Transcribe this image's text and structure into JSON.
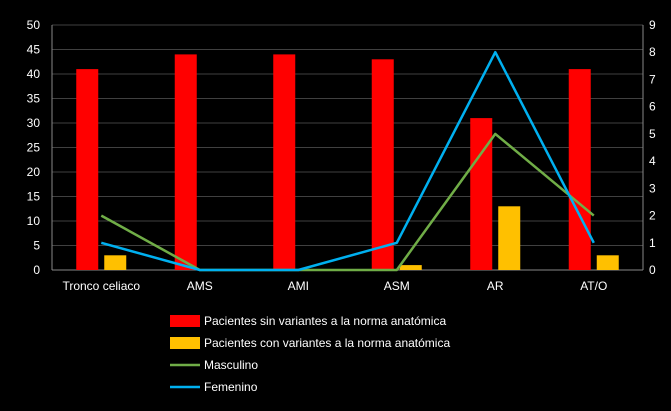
{
  "chart_data": {
    "type": "bar",
    "categories": [
      "Tronco celiaco",
      "AMS",
      "AMI",
      "ASM",
      "AR",
      "AT/O"
    ],
    "series": [
      {
        "name": "Pacientes sin variantes a la norma anatómica",
        "kind": "bar",
        "axis": "left",
        "color": "#ff0000",
        "values": [
          41,
          44,
          44,
          43,
          31,
          41
        ]
      },
      {
        "name": "Pacientes con variantes a la norma anatómica",
        "kind": "bar",
        "axis": "left",
        "color": "#ffc000",
        "values": [
          3,
          0,
          0,
          1,
          13,
          3
        ]
      },
      {
        "name": "Masculino",
        "kind": "line",
        "axis": "right",
        "color": "#70ad47",
        "values": [
          2,
          0,
          0,
          0,
          5,
          2
        ]
      },
      {
        "name": "Femenino",
        "kind": "line",
        "axis": "right",
        "color": "#00b0f0",
        "values": [
          1,
          0,
          0,
          1,
          8,
          1
        ]
      }
    ],
    "y_left": {
      "min": 0,
      "max": 50,
      "step": 5,
      "ticks": [
        "0",
        "5",
        "10",
        "15",
        "20",
        "25",
        "30",
        "35",
        "40",
        "45",
        "50"
      ]
    },
    "y_right": {
      "min": 0,
      "max": 9,
      "step": 1,
      "ticks": [
        "0",
        "1",
        "2",
        "3",
        "4",
        "5",
        "6",
        "7",
        "8",
        "9"
      ]
    },
    "legend": {
      "placement": "bottom"
    },
    "grid": true,
    "background": "#000000"
  }
}
